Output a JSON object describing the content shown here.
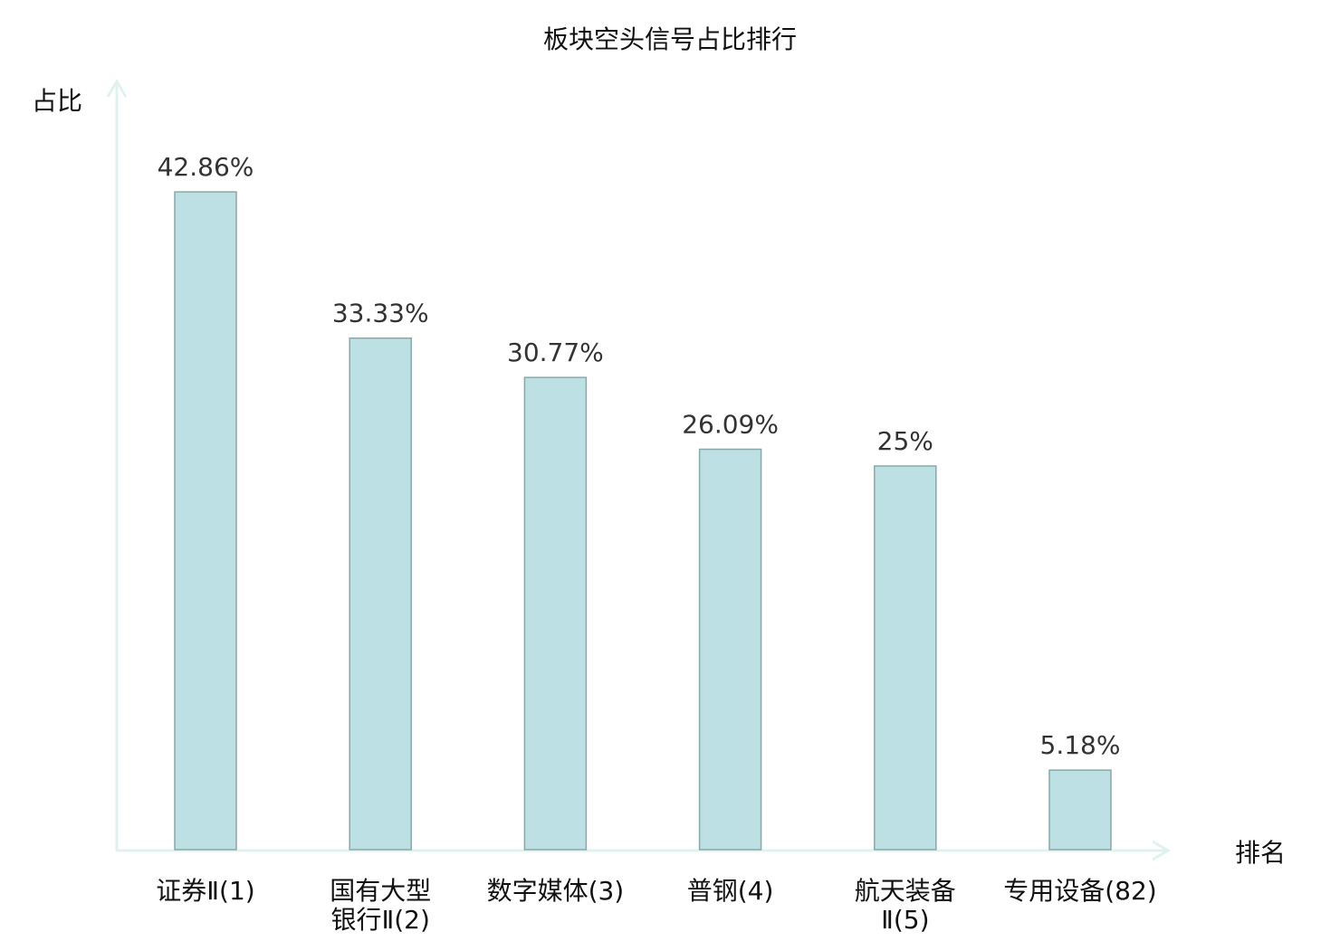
{
  "chart_data": {
    "type": "bar",
    "title": "板块空头信号占比排行",
    "ylabel": "占比",
    "xlabel": "排名",
    "categories": [
      "证券Ⅱ(1)",
      "国有大型\n银行Ⅱ(2)",
      "数字媒体(3)",
      "普钢(4)",
      "航天装备\nⅡ(5)",
      "专用设备(82)"
    ],
    "values": [
      42.86,
      33.33,
      30.77,
      26.09,
      25,
      5.18
    ],
    "value_labels": [
      "42.86%",
      "33.33%",
      "30.77%",
      "26.09%",
      "25%",
      "5.18%"
    ],
    "highlight_index": 5,
    "ylim": [
      0,
      50
    ],
    "grid": false,
    "legend": "none",
    "colors": {
      "bar_fill": "#bce0e3",
      "bar_stroke": "#8aa8a8",
      "axis": "#e0f2f0",
      "highlight_label": "#e8141c",
      "text": "#111111"
    }
  }
}
